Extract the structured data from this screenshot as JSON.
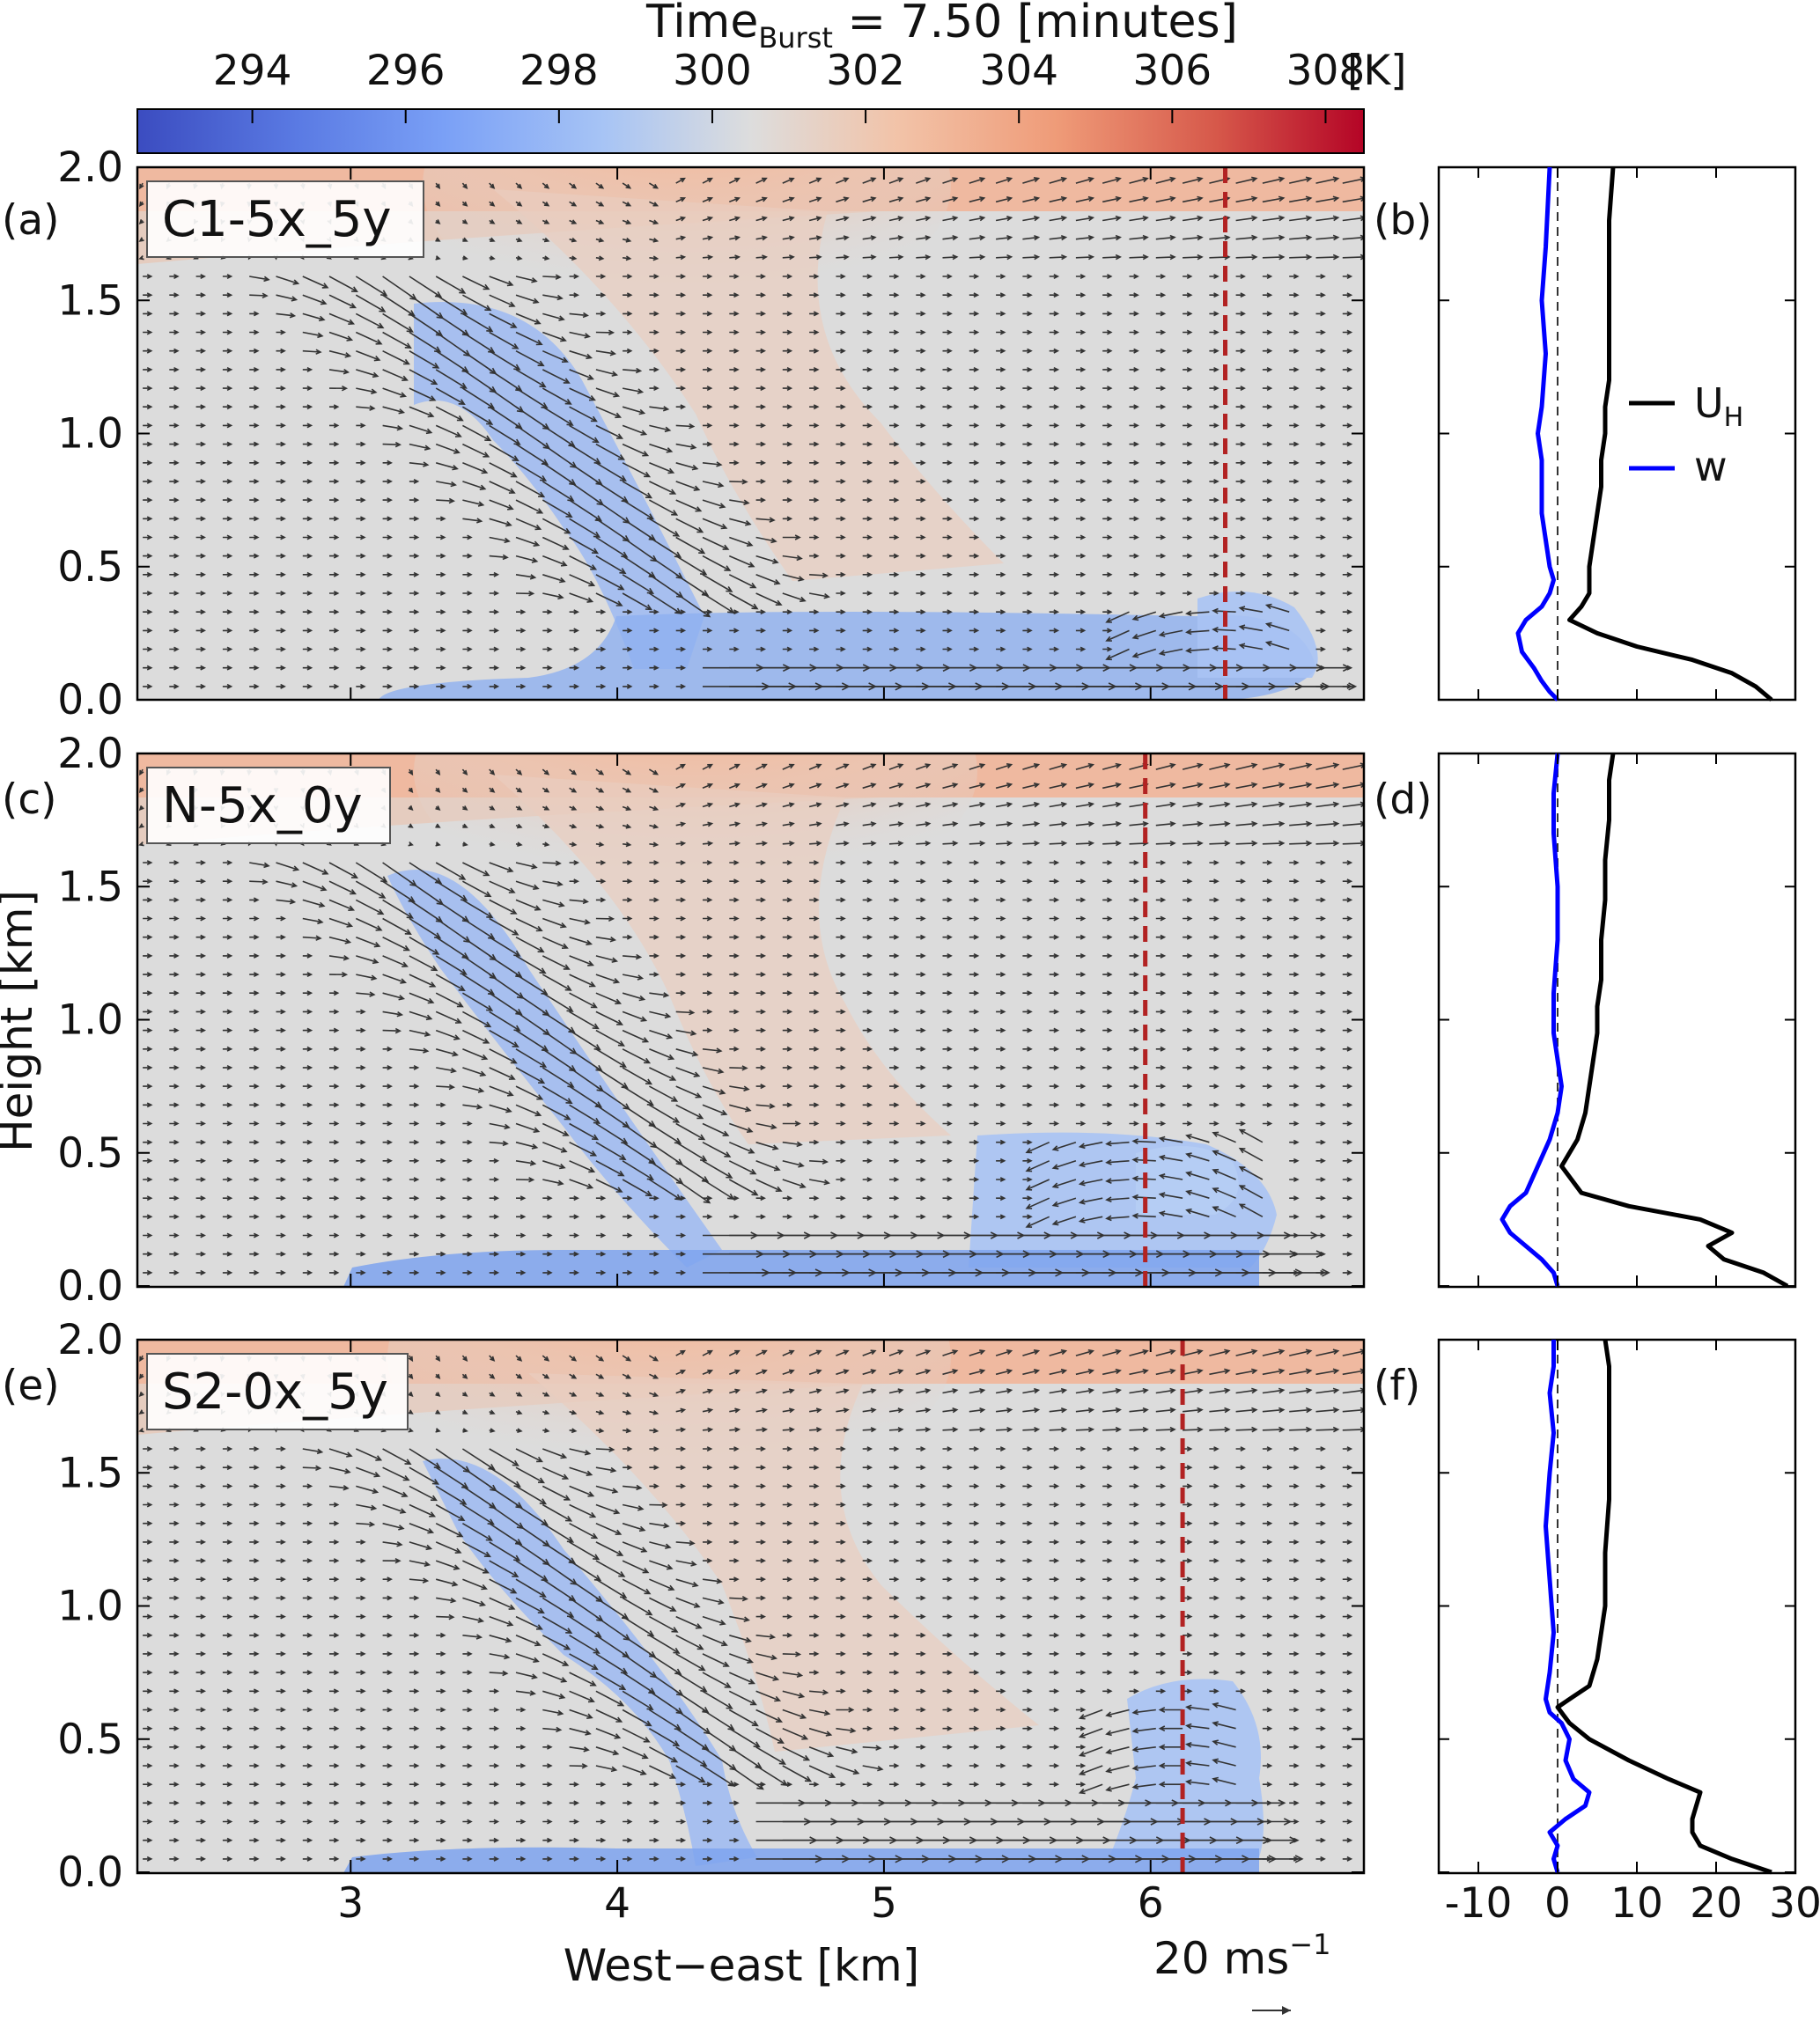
{
  "figure": {
    "title_prefix": "Time",
    "title_sub": "Burst",
    "title_suffix": " = 7.50 [minutes]"
  },
  "colorbar": {
    "ticks": [
      "294",
      "296",
      "298",
      "300",
      "302",
      "304",
      "306",
      "308"
    ],
    "tick_values": [
      294,
      296,
      298,
      300,
      302,
      304,
      306,
      308
    ],
    "range": [
      292.5,
      308.5
    ],
    "unit": "[K]",
    "colors": [
      "#3b4cc0",
      "#dddddd",
      "#b40426"
    ]
  },
  "axes": {
    "ylabel": "Height [km]",
    "xlabel": "West−east [km]",
    "xticks": [
      "3",
      "4",
      "5",
      "6"
    ],
    "yticks": [
      "0.0",
      "0.5",
      "1.0",
      "1.5",
      "2.0"
    ],
    "profile_xticks": [
      "-10",
      "0",
      "10",
      "20",
      "30"
    ],
    "quiver_key": "20 ms",
    "quiver_key_sup": "−1",
    "quiver_key_value": 20
  },
  "legend": {
    "uh_main": "U",
    "uh_sub": "H",
    "w": "w",
    "uh_color": "#000000",
    "w_color": "#0000ff"
  },
  "panels": [
    {
      "label": "(a)",
      "case": "C1-5x_5y",
      "profile_label": "(b)"
    },
    {
      "label": "(c)",
      "case": "N-5x_0y",
      "profile_label": "(d)"
    },
    {
      "label": "(e)",
      "case": "S2-0x_5y",
      "profile_label": "(f)"
    }
  ],
  "chart_data": [
    {
      "type": "heatmap",
      "name": "potential temperature cross-section with wind vectors",
      "panels": [
        "(a)",
        "(c)",
        "(e)"
      ],
      "xlim": [
        2.2,
        6.8
      ],
      "ylim": [
        0.0,
        2.0
      ],
      "color_variable_unit": "K",
      "color_range": [
        292.5,
        308.5
      ],
      "profile_location_x": [
        6.28,
        5.98,
        6.12
      ],
      "cold_pool_front_x": [
        6.55,
        6.5,
        6.4
      ],
      "cold_pool_depth_km": [
        0.35,
        0.55,
        0.62
      ]
    },
    {
      "type": "line",
      "name": "vertical profiles at profile location",
      "panels": [
        "(b)",
        "(d)",
        "(f)"
      ],
      "xlim": [
        -15,
        30
      ],
      "ylim": [
        0.0,
        2.0
      ],
      "x_ticks": [
        -10,
        0,
        10,
        20,
        30
      ],
      "series": [
        {
          "name": "U_H",
          "panel": "(b)",
          "x": [
            27,
            25,
            22,
            17,
            10,
            5,
            1.5,
            3,
            4,
            4,
            4.5,
            5,
            5.5,
            5.5,
            6,
            6,
            6.5,
            6.5,
            6.5,
            6.5,
            6.5,
            7
          ],
          "y": [
            0.0,
            0.05,
            0.1,
            0.15,
            0.2,
            0.25,
            0.3,
            0.35,
            0.4,
            0.5,
            0.6,
            0.7,
            0.8,
            0.9,
            1.0,
            1.1,
            1.2,
            1.3,
            1.45,
            1.6,
            1.8,
            2.0
          ]
        },
        {
          "name": "w",
          "panel": "(b)",
          "x": [
            0,
            -1,
            -2,
            -3,
            -4.5,
            -5,
            -4,
            -2,
            -1,
            -0.5,
            -1,
            -1.5,
            -2,
            -2,
            -2,
            -2.5,
            -2,
            -1.5,
            -2,
            -1.5,
            -1
          ],
          "y": [
            0.0,
            0.03,
            0.07,
            0.12,
            0.18,
            0.25,
            0.3,
            0.35,
            0.4,
            0.45,
            0.5,
            0.6,
            0.7,
            0.8,
            0.9,
            1.0,
            1.1,
            1.3,
            1.5,
            1.7,
            2.0
          ]
        },
        {
          "name": "U_H",
          "panel": "(d)",
          "x": [
            29,
            26,
            21,
            19,
            22,
            18,
            9,
            3,
            0.5,
            2.5,
            3.5,
            4,
            4.5,
            5,
            5,
            5.5,
            5.5,
            6,
            6,
            6.5,
            6.5,
            7
          ],
          "y": [
            0.0,
            0.05,
            0.1,
            0.15,
            0.2,
            0.25,
            0.3,
            0.35,
            0.45,
            0.55,
            0.65,
            0.75,
            0.85,
            0.95,
            1.05,
            1.15,
            1.3,
            1.45,
            1.6,
            1.75,
            1.9,
            2.0
          ]
        },
        {
          "name": "w",
          "panel": "(d)",
          "x": [
            0,
            -0.5,
            -2,
            -4,
            -6,
            -7,
            -6,
            -4,
            -2.5,
            -1,
            0,
            0.5,
            0,
            -0.5,
            -0.5,
            0,
            0,
            -0.5,
            -0.5,
            0
          ],
          "y": [
            0.0,
            0.05,
            0.1,
            0.15,
            0.2,
            0.25,
            0.3,
            0.35,
            0.45,
            0.55,
            0.65,
            0.75,
            0.85,
            0.95,
            1.1,
            1.3,
            1.5,
            1.7,
            1.85,
            2.0
          ]
        },
        {
          "name": "U_H",
          "panel": "(f)",
          "x": [
            27,
            22,
            18,
            17,
            17,
            18,
            14,
            9,
            4,
            1.5,
            0,
            2,
            4,
            5,
            5.5,
            6,
            6,
            6,
            6.5,
            6.5,
            6.5,
            6.5,
            6
          ],
          "y": [
            0.0,
            0.05,
            0.1,
            0.15,
            0.2,
            0.3,
            0.35,
            0.42,
            0.5,
            0.56,
            0.62,
            0.66,
            0.7,
            0.8,
            0.9,
            1.0,
            1.1,
            1.2,
            1.4,
            1.6,
            1.8,
            1.9,
            2.0
          ]
        },
        {
          "name": "w",
          "panel": "(f)",
          "x": [
            0,
            -0.5,
            0,
            -1,
            1,
            3.5,
            4,
            2,
            1,
            1.5,
            0.5,
            -1,
            -1.5,
            -1,
            -0.5,
            -1,
            -1.5,
            -1,
            -0.5,
            -1,
            -0.5,
            -0.5
          ],
          "y": [
            0.0,
            0.05,
            0.1,
            0.15,
            0.2,
            0.25,
            0.3,
            0.35,
            0.42,
            0.5,
            0.56,
            0.6,
            0.65,
            0.75,
            0.9,
            1.1,
            1.3,
            1.5,
            1.65,
            1.8,
            1.9,
            2.0
          ]
        }
      ]
    }
  ]
}
